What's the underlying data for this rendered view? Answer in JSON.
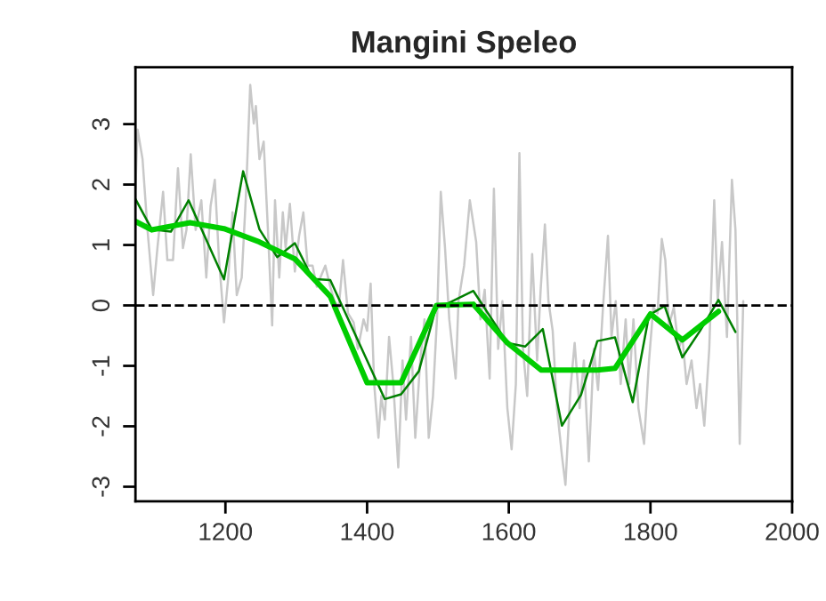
{
  "chart_data": {
    "type": "line",
    "title": "Mangini Speleo",
    "xlim": [
      1073,
      2000
    ],
    "xticks": [
      1200,
      1400,
      1600,
      1800,
      2000
    ],
    "ylim": [
      -3.24,
      3.94
    ],
    "yticks": [
      -3,
      -2,
      -1,
      0,
      1,
      2,
      3
    ],
    "grid": false,
    "marker": "none",
    "line_style": "solid",
    "ref_lines": [
      {
        "axis": "y",
        "value": 0,
        "color": "#000000",
        "line_style": "dashed"
      }
    ],
    "series": [
      {
        "color": "#c8c8c8",
        "x": [
          1073,
          1076,
          1083,
          1090,
          1098,
          1104,
          1112,
          1118,
          1126,
          1133,
          1140,
          1145,
          1151,
          1158,
          1166,
          1173,
          1179,
          1185,
          1191,
          1198,
          1204,
          1210,
          1216,
          1223,
          1229,
          1235,
          1240,
          1243,
          1248,
          1254,
          1260,
          1266,
          1270,
          1276,
          1281,
          1285,
          1291,
          1298,
          1304,
          1310,
          1316,
          1323,
          1329,
          1334,
          1341,
          1348,
          1354,
          1360,
          1366,
          1373,
          1381,
          1387,
          1395,
          1400,
          1405,
          1410,
          1416,
          1420,
          1425,
          1431,
          1437,
          1444,
          1450,
          1455,
          1462,
          1468,
          1475,
          1481,
          1487,
          1493,
          1499,
          1504,
          1510,
          1516,
          1525,
          1529,
          1537,
          1545,
          1554,
          1560,
          1566,
          1573,
          1579,
          1585,
          1591,
          1598,
          1604,
          1610,
          1615,
          1620,
          1626,
          1633,
          1640,
          1645,
          1651,
          1656,
          1662,
          1668,
          1675,
          1680,
          1687,
          1693,
          1700,
          1706,
          1713,
          1720,
          1726,
          1733,
          1740,
          1745,
          1751,
          1758,
          1765,
          1770,
          1776,
          1783,
          1791,
          1798,
          1804,
          1810,
          1816,
          1821,
          1826,
          1833,
          1840,
          1845,
          1851,
          1858,
          1865,
          1870,
          1876,
          1883,
          1890,
          1895,
          1901,
          1908,
          1915,
          1920,
          1926,
          1931
        ],
        "values": [
          1.93,
          2.91,
          2.42,
          1.25,
          0.17,
          0.95,
          1.88,
          0.75,
          0.75,
          2.27,
          0.95,
          1.25,
          2.5,
          1.25,
          1.74,
          0.46,
          1.64,
          2.08,
          0.75,
          -0.28,
          0.46,
          1.54,
          0.17,
          0.46,
          1.83,
          3.65,
          3.01,
          3.3,
          2.42,
          2.71,
          1.25,
          -0.33,
          1.74,
          0.46,
          1.54,
          0.95,
          1.68,
          0.56,
          1.15,
          1.54,
          0.66,
          0.66,
          0.31,
          0.46,
          0.66,
          0.31,
          0.07,
          -0.03,
          0.75,
          -0.13,
          -0.28,
          -0.72,
          -0.23,
          -0.42,
          0.36,
          -1.3,
          -2.19,
          -1.5,
          -1.89,
          -0.52,
          -1.3,
          -2.68,
          -0.91,
          -1.89,
          -0.52,
          -2.19,
          -0.91,
          -0.23,
          -2.19,
          -1.5,
          -0.13,
          1.88,
          0.95,
          -0.23,
          -1.21,
          0.07,
          0.66,
          1.74,
          1.05,
          -0.23,
          0.26,
          -1.21,
          1.93,
          -0.72,
          0.07,
          -1.7,
          -2.38,
          -1.3,
          2.52,
          -0.72,
          -1.5,
          0.85,
          -0.91,
          0.26,
          1.34,
          0.07,
          -0.42,
          -1.7,
          -2.48,
          -2.97,
          -1.4,
          -0.62,
          -1.7,
          -0.91,
          -2.58,
          -0.72,
          -1.4,
          -0.03,
          1.15,
          -0.52,
          0.07,
          -1.3,
          -0.23,
          -1.3,
          -0.23,
          -1.7,
          -2.29,
          -0.91,
          -0.03,
          -0.13,
          1.1,
          0.75,
          -0.33,
          -0.03,
          -0.72,
          -0.52,
          -1.3,
          -0.91,
          -1.7,
          -1.3,
          -1.99,
          -0.72,
          1.74,
          0.07,
          1.05,
          -0.52,
          2.08,
          1.25,
          -2.29,
          0.07
        ]
      },
      {
        "color": "#008000",
        "x": [
          1073,
          1096,
          1123,
          1148,
          1198,
          1225,
          1248,
          1273,
          1298,
          1323,
          1348,
          1425,
          1448,
          1473,
          1498,
          1508,
          1550,
          1598,
          1623,
          1648,
          1675,
          1702,
          1725,
          1750,
          1775,
          1798,
          1820,
          1845,
          1870,
          1896,
          1920
        ],
        "values": [
          1.76,
          1.26,
          1.22,
          1.74,
          0.43,
          2.22,
          1.26,
          0.8,
          1.03,
          0.44,
          0.42,
          -1.55,
          -1.47,
          -1.09,
          0.0,
          0.0,
          0.24,
          -0.62,
          -0.68,
          -0.39,
          -1.99,
          -1.48,
          -0.59,
          -0.53,
          -1.6,
          -0.16,
          -0.01,
          -0.86,
          -0.42,
          0.09,
          -0.44
        ]
      },
      {
        "color": "#00cd00",
        "x": [
          1073,
          1096,
          1150,
          1198,
          1248,
          1298,
          1348,
          1400,
          1448,
          1498,
          1550,
          1598,
          1646,
          1725,
          1750,
          1800,
          1845,
          1896
        ],
        "values": [
          1.39,
          1.25,
          1.37,
          1.27,
          1.05,
          0.77,
          0.15,
          -1.28,
          -1.28,
          0.0,
          0.02,
          -0.62,
          -1.07,
          -1.07,
          -1.04,
          -0.14,
          -0.57,
          -0.1
        ]
      }
    ]
  }
}
